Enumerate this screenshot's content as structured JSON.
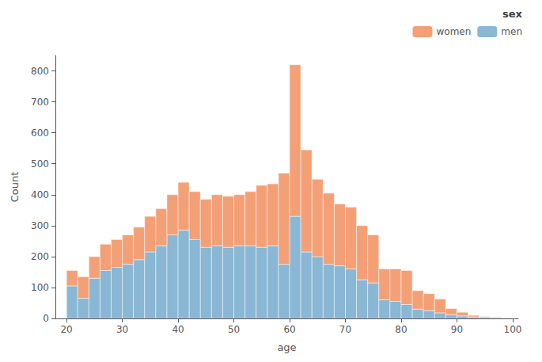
{
  "chart_data": {
    "type": "histogram",
    "xlabel": "age",
    "ylabel": "Count",
    "legend_title": "sex",
    "bins": [
      20,
      22,
      24,
      26,
      28,
      30,
      32,
      34,
      36,
      38,
      40,
      42,
      44,
      46,
      48,
      50,
      52,
      54,
      56,
      58,
      60,
      62,
      64,
      66,
      68,
      70,
      72,
      74,
      76,
      78,
      80,
      82,
      84,
      86,
      88,
      90,
      92,
      94,
      96,
      98,
      100
    ],
    "series": [
      {
        "name": "men",
        "color": "#89B7D4",
        "values": [
          105,
          65,
          130,
          155,
          165,
          175,
          190,
          215,
          235,
          270,
          285,
          255,
          230,
          235,
          230,
          235,
          235,
          230,
          235,
          175,
          330,
          215,
          200,
          175,
          170,
          160,
          125,
          115,
          60,
          55,
          45,
          30,
          25,
          18,
          12,
          8,
          5,
          3,
          2,
          1
        ]
      },
      {
        "name": "women",
        "color": "#F4A077",
        "values": [
          50,
          70,
          70,
          85,
          90,
          95,
          105,
          115,
          120,
          130,
          155,
          155,
          155,
          165,
          165,
          165,
          175,
          200,
          200,
          295,
          490,
          330,
          250,
          230,
          200,
          200,
          175,
          155,
          100,
          105,
          110,
          60,
          55,
          45,
          20,
          12,
          5,
          3,
          2,
          1
        ]
      }
    ],
    "stacked": true,
    "xlim": [
      18,
      101
    ],
    "ylim": [
      0,
      850
    ],
    "xticks": [
      20,
      30,
      40,
      50,
      60,
      70,
      80,
      90,
      100
    ],
    "yticks": [
      0,
      100,
      200,
      300,
      400,
      500,
      600,
      700,
      800
    ],
    "grid": false,
    "legend": "upper right"
  }
}
